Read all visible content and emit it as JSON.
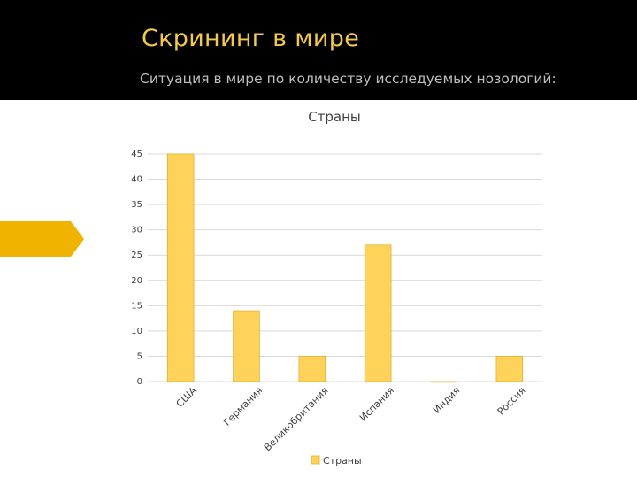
{
  "slide": {
    "title": "Скрининг в мире",
    "subtitle": "Ситуация в мире по количеству исследуемых нозологий:"
  },
  "colors": {
    "header_bg": "#000000",
    "title": "#f2c94c",
    "accent": "#f0b400",
    "bar_fill": "#ffd35a",
    "bar_stroke": "#e0b030",
    "grid": "#d9d9d9"
  },
  "chart_data": {
    "type": "bar",
    "title": "Страны",
    "categories": [
      "США",
      "Германия",
      "Великобритания",
      "Испания",
      "Индия",
      "Россия"
    ],
    "series": [
      {
        "name": "Страны",
        "values": [
          45,
          14,
          5,
          27,
          0,
          5
        ]
      }
    ],
    "ylim": [
      0,
      45
    ],
    "yticks": [
      0,
      5,
      10,
      15,
      20,
      25,
      30,
      35,
      40,
      45
    ],
    "grid": true,
    "legend": "bottom"
  }
}
